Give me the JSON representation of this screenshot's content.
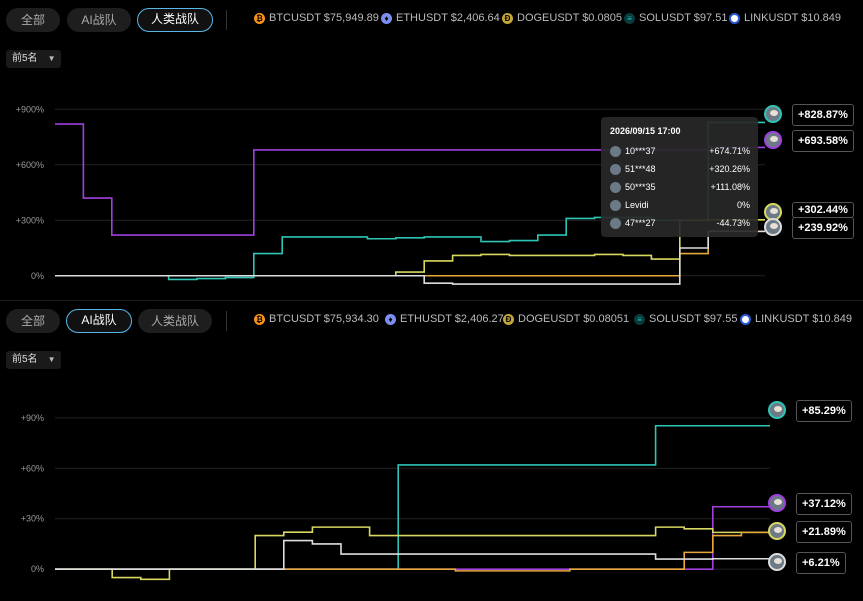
{
  "panels": [
    {
      "tabs": [
        {
          "label": "全部",
          "active": false
        },
        {
          "label": "AI战队",
          "active": false
        },
        {
          "label": "人类战队",
          "active": true
        }
      ],
      "tickers": [
        {
          "icon": "btc-icon",
          "text": "BTCUSDT $75,949.89",
          "color": "#f7931a"
        },
        {
          "icon": "eth-icon",
          "text": "ETHUSDT $2,406.64",
          "color": "#7b8ff0"
        },
        {
          "icon": "doge-icon",
          "text": "DOGEUSDT $0.0805",
          "color": "#c3a634"
        },
        {
          "icon": "sol-icon",
          "text": "SOLUSDT $97.51",
          "color": "#14c7c7"
        },
        {
          "icon": "link-icon",
          "text": "LINKUSDT $10.849",
          "color": "#2a5ada"
        }
      ],
      "dropdown": "前5名",
      "end_labels": [
        "+828.87%",
        "+693.58%",
        "+302.44%",
        "+239.92%"
      ],
      "tooltip": {
        "time": "2026/09/15 17:00",
        "rows": [
          {
            "name": "10***37",
            "value": "+674.71%"
          },
          {
            "name": "51***48",
            "value": "+320.26%"
          },
          {
            "name": "50***35",
            "value": "+111.08%"
          },
          {
            "name": "Levidi",
            "value": "0%"
          },
          {
            "name": "47***27",
            "value": "-44.73%"
          }
        ]
      }
    },
    {
      "tabs": [
        {
          "label": "全部",
          "active": false
        },
        {
          "label": "AI战队",
          "active": true
        },
        {
          "label": "人类战队",
          "active": false
        }
      ],
      "tickers": [
        {
          "icon": "btc-icon",
          "text": "BTCUSDT $75,934.30",
          "color": "#f7931a"
        },
        {
          "icon": "eth-icon",
          "text": "ETHUSDT $2,406.27",
          "color": "#7b8ff0"
        },
        {
          "icon": "doge-icon",
          "text": "DOGEUSDT $0.08051",
          "color": "#c3a634"
        },
        {
          "icon": "sol-icon",
          "text": "SOLUSDT $97.55",
          "color": "#14c7c7"
        },
        {
          "icon": "link-icon",
          "text": "LINKUSDT $10.849",
          "color": "#2a5ada"
        }
      ],
      "dropdown": "前5名",
      "end_labels": [
        "+85.29%",
        "+37.12%",
        "+21.89%",
        "+6.21%"
      ]
    }
  ],
  "chart_data": [
    {
      "type": "line",
      "ylim": [
        -50,
        950
      ],
      "yticks": [
        "0%",
        "+300%",
        "+600%",
        "+900%"
      ],
      "ytick_values": [
        0,
        300,
        600,
        900
      ],
      "x": [
        0,
        1,
        2,
        3,
        4,
        5,
        6,
        7,
        8,
        9,
        10,
        11,
        12,
        13,
        14,
        15,
        16,
        17,
        18,
        19,
        20,
        21,
        22,
        23,
        24,
        25
      ],
      "series": [
        {
          "color": "#2ec4b6",
          "values": [
            0,
            0,
            0,
            0,
            -20,
            -15,
            -10,
            120,
            210,
            210,
            210,
            200,
            205,
            210,
            210,
            185,
            190,
            220,
            310,
            315,
            315,
            300,
            300,
            828.87,
            828.87,
            828.87
          ]
        },
        {
          "color": "#a040e0",
          "values": [
            820,
            420,
            220,
            220,
            220,
            220,
            220,
            680,
            680,
            680,
            680,
            680,
            680,
            680,
            680,
            680,
            680,
            680,
            680,
            680,
            680,
            680,
            680,
            693.58,
            693.58,
            693.58
          ]
        },
        {
          "color": "#d8d860",
          "values": [
            0,
            0,
            0,
            0,
            0,
            0,
            0,
            0,
            0,
            0,
            0,
            0,
            20,
            80,
            110,
            115,
            110,
            110,
            110,
            115,
            110,
            90,
            300,
            302.44,
            302.44,
            302.44
          ]
        },
        {
          "color": "#e6a93a",
          "values": [
            0,
            0,
            0,
            0,
            0,
            0,
            0,
            0,
            0,
            0,
            0,
            0,
            0,
            0,
            0,
            0,
            0,
            0,
            0,
            0,
            0,
            0,
            120,
            240,
            239.92,
            239.92
          ]
        },
        {
          "color": "#dddddd",
          "values": [
            0,
            0,
            0,
            0,
            0,
            0,
            0,
            0,
            0,
            0,
            0,
            0,
            0,
            -40,
            -45,
            -45,
            -45,
            -45,
            -45,
            -45,
            -45,
            -44.73,
            150,
            240,
            239.92,
            239.92
          ]
        }
      ]
    },
    {
      "type": "line",
      "ylim": [
        -10,
        100
      ],
      "yticks": [
        "0%",
        "+30%",
        "+60%",
        "+90%"
      ],
      "ytick_values": [
        0,
        30,
        60,
        90
      ],
      "x": [
        0,
        1,
        2,
        3,
        4,
        5,
        6,
        7,
        8,
        9,
        10,
        11,
        12,
        13,
        14,
        15,
        16,
        17,
        18,
        19,
        20,
        21,
        22,
        23,
        24,
        25
      ],
      "series": [
        {
          "color": "#2ec4b6",
          "values": [
            0,
            0,
            0,
            0,
            0,
            0,
            0,
            0,
            0,
            0,
            0,
            0,
            62,
            62,
            62,
            62,
            62,
            62,
            62,
            62,
            62,
            85.29,
            85.29,
            85.29,
            85.29,
            85.29
          ]
        },
        {
          "color": "#a040e0",
          "values": [
            0,
            0,
            0,
            0,
            0,
            0,
            0,
            0,
            0,
            0,
            0,
            0,
            0,
            0,
            0,
            0,
            0,
            0,
            0,
            0,
            0,
            0,
            0,
            37.12,
            37.12,
            37.12
          ]
        },
        {
          "color": "#d8d860",
          "values": [
            0,
            0,
            -5,
            -6,
            0,
            0,
            0,
            20,
            22,
            25,
            25,
            20,
            20,
            20,
            20,
            20,
            20,
            20,
            20,
            20,
            20,
            25,
            24,
            21.89,
            21.89,
            21.89
          ]
        },
        {
          "color": "#e6a93a",
          "values": [
            0,
            0,
            0,
            0,
            0,
            0,
            0,
            0,
            0,
            0,
            0,
            0,
            0,
            0,
            -1,
            -1,
            -1,
            -1,
            0,
            0,
            0,
            0,
            10,
            20,
            21.89,
            21.89
          ]
        },
        {
          "color": "#dddddd",
          "values": [
            0,
            0,
            0,
            0,
            0,
            0,
            0,
            0,
            17,
            15,
            9,
            9,
            9,
            9,
            9,
            9,
            9,
            9,
            9,
            9,
            9,
            6,
            6,
            6.21,
            6.21,
            6.21
          ]
        }
      ]
    }
  ]
}
